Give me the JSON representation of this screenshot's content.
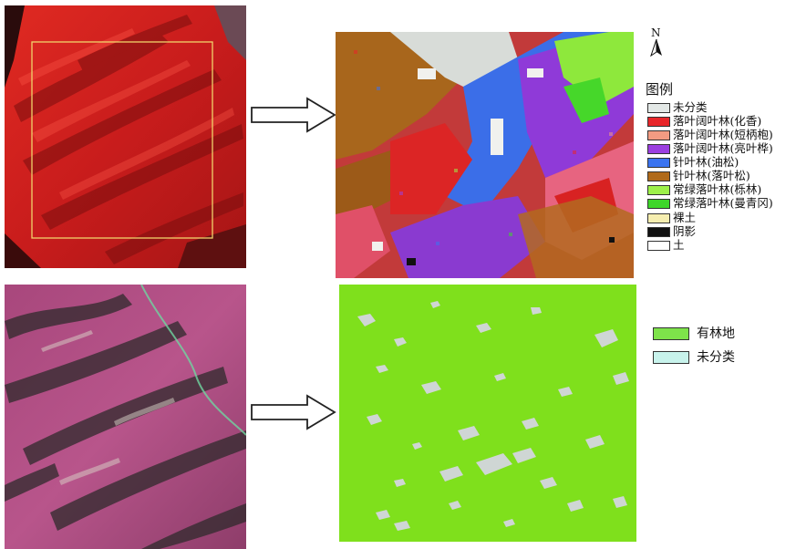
{
  "north_label": "N",
  "legend_top": {
    "title": "图例",
    "items": [
      {
        "label": "未分类",
        "color": "#e3e8e6"
      },
      {
        "label": "落叶阔叶林(化香)",
        "color": "#e8262a"
      },
      {
        "label": "落叶阔叶林(短柄枹)",
        "color": "#f39b82"
      },
      {
        "label": "落叶阔叶林(亮叶桦)",
        "color": "#9b3fe0"
      },
      {
        "label": "针叶林(油松)",
        "color": "#3b74f0"
      },
      {
        "label": "针叶林(落叶松)",
        "color": "#b06a1a"
      },
      {
        "label": "常绿落叶林(栎林)",
        "color": "#9df04a"
      },
      {
        "label": "常绿落叶林(曼青冈)",
        "color": "#3ed62a"
      },
      {
        "label": "裸土",
        "color": "#f6eeb0"
      },
      {
        "label": "阴影",
        "color": "#111111"
      },
      {
        "label": "土",
        "color": "#ffffff"
      }
    ]
  },
  "legend_bottom": {
    "items": [
      {
        "label": "有林地",
        "color": "#7ee34a"
      },
      {
        "label": "未分类",
        "color": "#c8f3ec"
      }
    ]
  },
  "colors": {
    "image_red_base": "#d42121",
    "image_pink_base": "#b04f83",
    "forest_green": "#7fe01c",
    "unclassified_grey": "#cfd6d4",
    "study_area_box": "#f1d36b"
  }
}
